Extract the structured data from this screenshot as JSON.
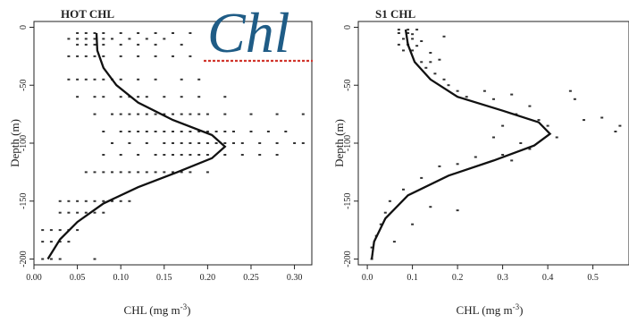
{
  "overlay": {
    "text": "Chl",
    "accent": "#1f5c86",
    "underline_color": "#d0342c"
  },
  "chart_data": [
    {
      "type": "scatter",
      "title": "HOT CHL",
      "xlabel": "CHL  (mg m",
      "xlabel_sup": "-3",
      "xlabel_tail": ")",
      "ylabel": "Depth (m)",
      "xlim": [
        0.0,
        0.32
      ],
      "ylim": [
        -205,
        5
      ],
      "xticks": [
        "0.00",
        "0.05",
        "0.10",
        "0.15",
        "0.20",
        "0.25",
        "0.30"
      ],
      "xtick_values": [
        0.0,
        0.05,
        0.1,
        0.15,
        0.2,
        0.25,
        0.3
      ],
      "yticks": [
        "0",
        "-50",
        "-100",
        "-150",
        "-200"
      ],
      "ytick_values": [
        0,
        -50,
        -100,
        -150,
        -200
      ],
      "series": [
        {
          "kind": "points",
          "points": [
            [
              0.05,
              -5
            ],
            [
              0.06,
              -5
            ],
            [
              0.07,
              -5
            ],
            [
              0.08,
              -5
            ],
            [
              0.1,
              -5
            ],
            [
              0.12,
              -5
            ],
            [
              0.14,
              -5
            ],
            [
              0.16,
              -5
            ],
            [
              0.18,
              -5
            ],
            [
              0.04,
              -10
            ],
            [
              0.05,
              -10
            ],
            [
              0.06,
              -10
            ],
            [
              0.07,
              -10
            ],
            [
              0.08,
              -10
            ],
            [
              0.09,
              -10
            ],
            [
              0.11,
              -10
            ],
            [
              0.13,
              -10
            ],
            [
              0.15,
              -10
            ],
            [
              0.05,
              -15
            ],
            [
              0.06,
              -15
            ],
            [
              0.07,
              -15
            ],
            [
              0.08,
              -15
            ],
            [
              0.1,
              -15
            ],
            [
              0.12,
              -15
            ],
            [
              0.14,
              -15
            ],
            [
              0.17,
              -15
            ],
            [
              0.04,
              -25
            ],
            [
              0.05,
              -25
            ],
            [
              0.06,
              -25
            ],
            [
              0.07,
              -25
            ],
            [
              0.08,
              -25
            ],
            [
              0.1,
              -25
            ],
            [
              0.12,
              -25
            ],
            [
              0.14,
              -25
            ],
            [
              0.16,
              -25
            ],
            [
              0.18,
              -25
            ],
            [
              0.04,
              -45
            ],
            [
              0.05,
              -45
            ],
            [
              0.06,
              -45
            ],
            [
              0.07,
              -45
            ],
            [
              0.08,
              -45
            ],
            [
              0.09,
              -45
            ],
            [
              0.1,
              -45
            ],
            [
              0.12,
              -45
            ],
            [
              0.14,
              -45
            ],
            [
              0.17,
              -45
            ],
            [
              0.19,
              -45
            ],
            [
              0.05,
              -60
            ],
            [
              0.07,
              -60
            ],
            [
              0.08,
              -60
            ],
            [
              0.1,
              -60
            ],
            [
              0.11,
              -60
            ],
            [
              0.12,
              -60
            ],
            [
              0.13,
              -60
            ],
            [
              0.15,
              -60
            ],
            [
              0.17,
              -60
            ],
            [
              0.19,
              -60
            ],
            [
              0.22,
              -60
            ],
            [
              0.07,
              -75
            ],
            [
              0.09,
              -75
            ],
            [
              0.1,
              -75
            ],
            [
              0.11,
              -75
            ],
            [
              0.12,
              -75
            ],
            [
              0.13,
              -75
            ],
            [
              0.14,
              -75
            ],
            [
              0.15,
              -75
            ],
            [
              0.16,
              -75
            ],
            [
              0.17,
              -75
            ],
            [
              0.18,
              -75
            ],
            [
              0.19,
              -75
            ],
            [
              0.2,
              -75
            ],
            [
              0.22,
              -75
            ],
            [
              0.25,
              -75
            ],
            [
              0.28,
              -75
            ],
            [
              0.31,
              -75
            ],
            [
              0.08,
              -90
            ],
            [
              0.1,
              -90
            ],
            [
              0.11,
              -90
            ],
            [
              0.12,
              -90
            ],
            [
              0.13,
              -90
            ],
            [
              0.14,
              -90
            ],
            [
              0.15,
              -90
            ],
            [
              0.16,
              -90
            ],
            [
              0.17,
              -90
            ],
            [
              0.18,
              -90
            ],
            [
              0.19,
              -90
            ],
            [
              0.2,
              -90
            ],
            [
              0.21,
              -90
            ],
            [
              0.22,
              -90
            ],
            [
              0.23,
              -90
            ],
            [
              0.25,
              -90
            ],
            [
              0.27,
              -90
            ],
            [
              0.29,
              -90
            ],
            [
              0.09,
              -100
            ],
            [
              0.11,
              -100
            ],
            [
              0.13,
              -100
            ],
            [
              0.15,
              -100
            ],
            [
              0.16,
              -100
            ],
            [
              0.17,
              -100
            ],
            [
              0.18,
              -100
            ],
            [
              0.19,
              -100
            ],
            [
              0.2,
              -100
            ],
            [
              0.21,
              -100
            ],
            [
              0.22,
              -100
            ],
            [
              0.23,
              -100
            ],
            [
              0.24,
              -100
            ],
            [
              0.26,
              -100
            ],
            [
              0.28,
              -100
            ],
            [
              0.3,
              -100
            ],
            [
              0.31,
              -100
            ],
            [
              0.08,
              -110
            ],
            [
              0.1,
              -110
            ],
            [
              0.12,
              -110
            ],
            [
              0.14,
              -110
            ],
            [
              0.15,
              -110
            ],
            [
              0.16,
              -110
            ],
            [
              0.17,
              -110
            ],
            [
              0.18,
              -110
            ],
            [
              0.19,
              -110
            ],
            [
              0.2,
              -110
            ],
            [
              0.22,
              -110
            ],
            [
              0.24,
              -110
            ],
            [
              0.26,
              -110
            ],
            [
              0.28,
              -110
            ],
            [
              0.06,
              -125
            ],
            [
              0.07,
              -125
            ],
            [
              0.08,
              -125
            ],
            [
              0.09,
              -125
            ],
            [
              0.1,
              -125
            ],
            [
              0.11,
              -125
            ],
            [
              0.12,
              -125
            ],
            [
              0.13,
              -125
            ],
            [
              0.14,
              -125
            ],
            [
              0.15,
              -125
            ],
            [
              0.16,
              -125
            ],
            [
              0.17,
              -125
            ],
            [
              0.18,
              -125
            ],
            [
              0.2,
              -125
            ],
            [
              0.03,
              -150
            ],
            [
              0.04,
              -150
            ],
            [
              0.05,
              -150
            ],
            [
              0.06,
              -150
            ],
            [
              0.07,
              -150
            ],
            [
              0.08,
              -150
            ],
            [
              0.09,
              -150
            ],
            [
              0.1,
              -150
            ],
            [
              0.11,
              -150
            ],
            [
              0.03,
              -160
            ],
            [
              0.04,
              -160
            ],
            [
              0.05,
              -160
            ],
            [
              0.06,
              -160
            ],
            [
              0.07,
              -160
            ],
            [
              0.08,
              -160
            ],
            [
              0.01,
              -175
            ],
            [
              0.02,
              -175
            ],
            [
              0.03,
              -175
            ],
            [
              0.04,
              -175
            ],
            [
              0.05,
              -175
            ],
            [
              0.01,
              -185
            ],
            [
              0.02,
              -185
            ],
            [
              0.03,
              -185
            ],
            [
              0.04,
              -185
            ],
            [
              0.01,
              -200
            ],
            [
              0.02,
              -200
            ],
            [
              0.03,
              -200
            ],
            [
              0.07,
              -200
            ]
          ]
        },
        {
          "kind": "line",
          "points": [
            [
              0.072,
              -5
            ],
            [
              0.073,
              -20
            ],
            [
              0.08,
              -35
            ],
            [
              0.095,
              -50
            ],
            [
              0.12,
              -65
            ],
            [
              0.16,
              -80
            ],
            [
              0.205,
              -93
            ],
            [
              0.22,
              -103
            ],
            [
              0.205,
              -113
            ],
            [
              0.165,
              -125
            ],
            [
              0.12,
              -138
            ],
            [
              0.08,
              -152
            ],
            [
              0.05,
              -168
            ],
            [
              0.03,
              -183
            ],
            [
              0.016,
              -200
            ]
          ]
        }
      ]
    },
    {
      "type": "scatter",
      "title": "S1 CHL",
      "xlabel": "CHL  (mg m",
      "xlabel_sup": "-3",
      "xlabel_tail": ")",
      "ylabel": "Depth (m)",
      "xlim": [
        -0.02,
        0.58
      ],
      "ylim": [
        -205,
        5
      ],
      "xticks": [
        "0.0",
        "0.1",
        "0.2",
        "0.3",
        "0.4",
        "0.5"
      ],
      "xtick_values": [
        0.0,
        0.1,
        0.2,
        0.3,
        0.4,
        0.5
      ],
      "yticks": [
        "0",
        "-50",
        "-100",
        "-150",
        "-200"
      ],
      "ytick_values": [
        0,
        -50,
        -100,
        -150,
        -200
      ],
      "series": [
        {
          "kind": "points",
          "points": [
            [
              0.07,
              -2
            ],
            [
              0.09,
              -2
            ],
            [
              0.11,
              -2
            ],
            [
              0.07,
              -5
            ],
            [
              0.09,
              -5
            ],
            [
              0.1,
              -6
            ],
            [
              0.08,
              -10
            ],
            [
              0.1,
              -10
            ],
            [
              0.12,
              -12
            ],
            [
              0.07,
              -15
            ],
            [
              0.09,
              -15
            ],
            [
              0.11,
              -16
            ],
            [
              0.08,
              -20
            ],
            [
              0.1,
              -20
            ],
            [
              0.14,
              -22
            ],
            [
              0.17,
              -8
            ],
            [
              0.16,
              -28
            ],
            [
              0.12,
              -30
            ],
            [
              0.14,
              -30
            ],
            [
              0.13,
              -35
            ],
            [
              0.15,
              -40
            ],
            [
              0.17,
              -45
            ],
            [
              0.18,
              -50
            ],
            [
              0.2,
              -55
            ],
            [
              0.22,
              -60
            ],
            [
              0.26,
              -55
            ],
            [
              0.28,
              -62
            ],
            [
              0.32,
              -58
            ],
            [
              0.36,
              -68
            ],
            [
              0.45,
              -55
            ],
            [
              0.46,
              -62
            ],
            [
              0.48,
              -80
            ],
            [
              0.52,
              -78
            ],
            [
              0.56,
              -85
            ],
            [
              0.55,
              -90
            ],
            [
              0.33,
              -75
            ],
            [
              0.38,
              -80
            ],
            [
              0.4,
              -85
            ],
            [
              0.42,
              -95
            ],
            [
              0.3,
              -85
            ],
            [
              0.34,
              -100
            ],
            [
              0.36,
              -105
            ],
            [
              0.28,
              -95
            ],
            [
              0.3,
              -110
            ],
            [
              0.32,
              -115
            ],
            [
              0.24,
              -112
            ],
            [
              0.2,
              -118
            ],
            [
              0.16,
              -120
            ],
            [
              0.12,
              -130
            ],
            [
              0.08,
              -140
            ],
            [
              0.14,
              -155
            ],
            [
              0.2,
              -158
            ],
            [
              0.05,
              -150
            ],
            [
              0.04,
              -160
            ],
            [
              0.03,
              -170
            ],
            [
              0.02,
              -180
            ],
            [
              0.01,
              -190
            ],
            [
              0.01,
              -200
            ],
            [
              0.06,
              -185
            ],
            [
              0.1,
              -170
            ]
          ]
        },
        {
          "kind": "line",
          "points": [
            [
              0.085,
              -2
            ],
            [
              0.09,
              -15
            ],
            [
              0.105,
              -30
            ],
            [
              0.14,
              -45
            ],
            [
              0.2,
              -60
            ],
            [
              0.3,
              -72
            ],
            [
              0.38,
              -82
            ],
            [
              0.405,
              -92
            ],
            [
              0.37,
              -102
            ],
            [
              0.28,
              -115
            ],
            [
              0.18,
              -128
            ],
            [
              0.09,
              -145
            ],
            [
              0.04,
              -165
            ],
            [
              0.015,
              -185
            ],
            [
              0.01,
              -200
            ]
          ]
        }
      ]
    }
  ]
}
